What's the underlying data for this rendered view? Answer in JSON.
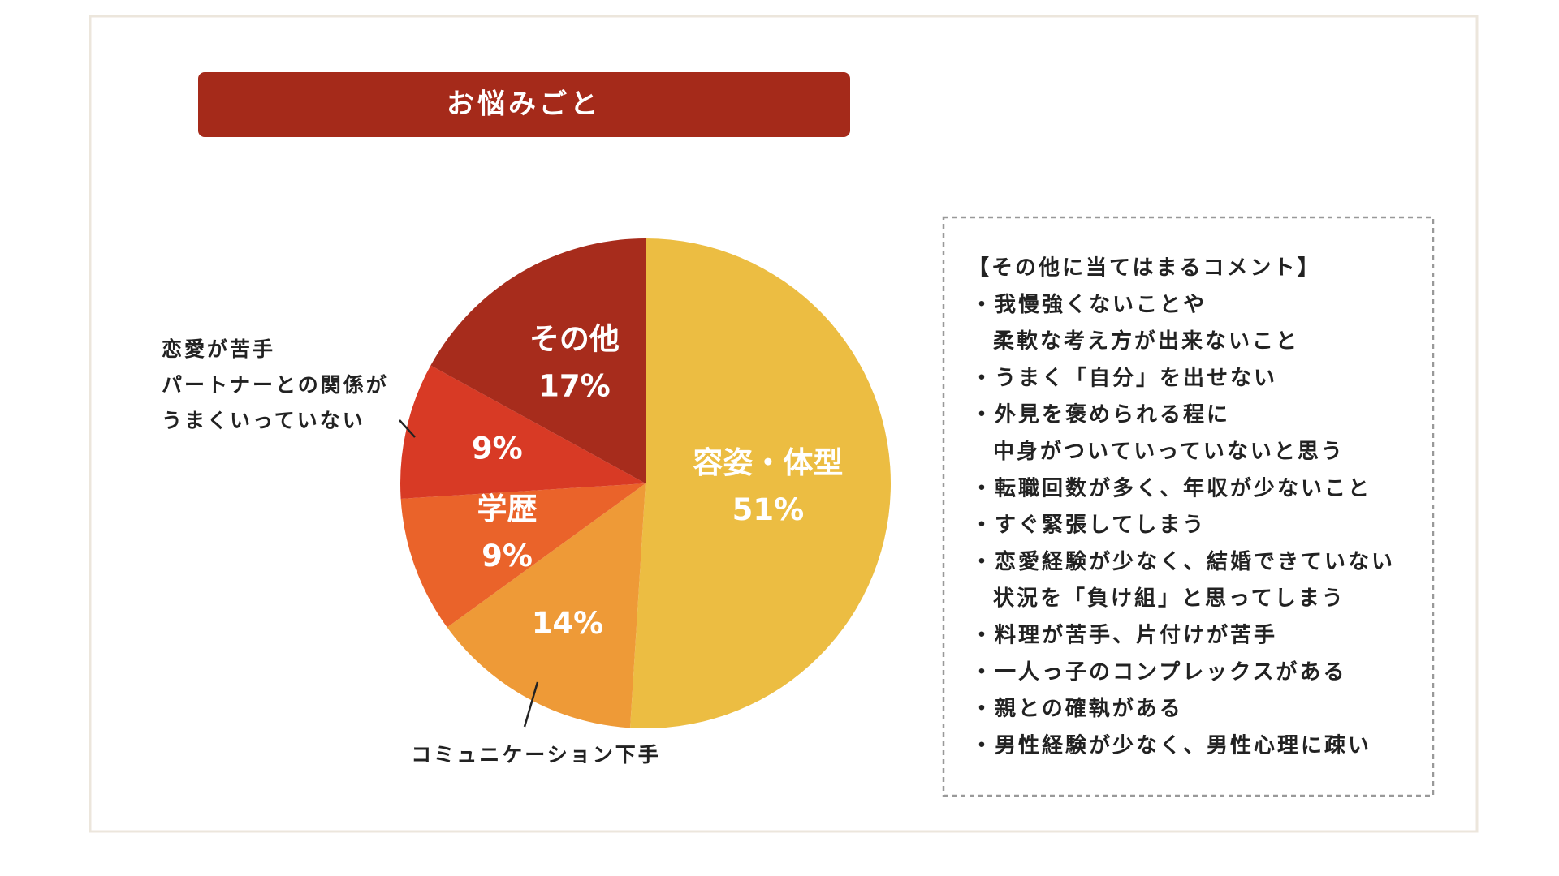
{
  "chart_data": {
    "type": "pie",
    "title": "お悩みごと",
    "categories": [
      "容姿・体型",
      "コミュニケーション下手",
      "学歴",
      [
        "恋愛が苦手",
        "パートナーとの関係が",
        "うまくいっていない"
      ],
      "その他"
    ],
    "values": [
      51,
      14,
      9,
      9,
      17
    ],
    "value_labels": [
      "51%",
      "14%",
      "9%",
      "9%",
      "17%"
    ],
    "colors": [
      "#ecbd42",
      "#ee9a37",
      "#ea632a",
      "#d83a25",
      "#a72c1c"
    ],
    "note": {
      "title": "【その他に当てはまるコメント】",
      "items": [
        [
          "・我慢強くないことや",
          "柔軟な考え方が出来ないこと"
        ],
        [
          "・うまく「自分」を出せない"
        ],
        [
          "・外見を褒められる程に",
          "中身がついていっていないと思う"
        ],
        [
          "・転職回数が多く、年収が少ないこと"
        ],
        [
          "・すぐ緊張してしまう"
        ],
        [
          "・恋愛経験が少なく、結婚できていない",
          "状況を「負け組」と思ってしまう"
        ],
        [
          "・料理が苦手、片付けが苦手"
        ],
        [
          "・一人っ子のコンプレックスがある"
        ],
        [
          "・親との確執がある"
        ],
        [
          "・男性経験が少なく、男性心理に疎い"
        ]
      ]
    }
  }
}
